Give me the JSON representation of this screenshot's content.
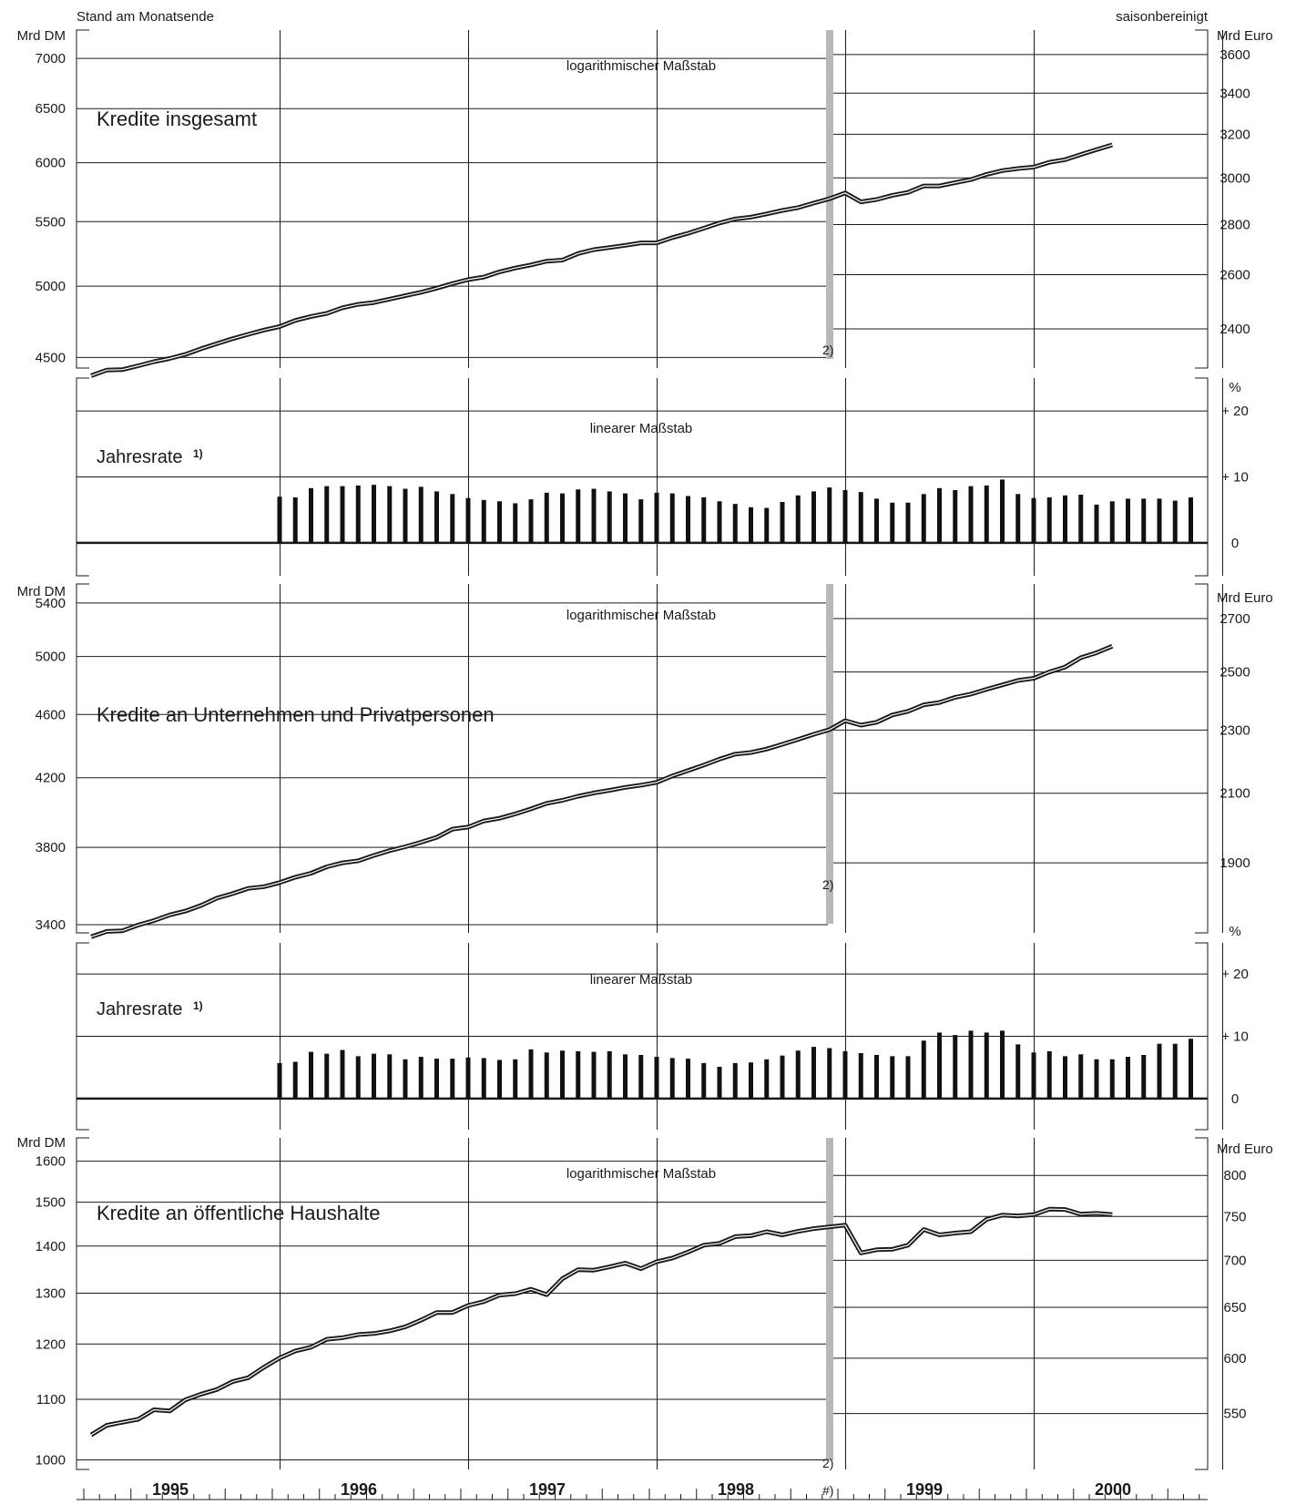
{
  "header": {
    "left_note": "Stand am Monatsende",
    "right_note": "saisonbereinigt"
  },
  "units": {
    "dm": "Mrd DM",
    "euro": "Mrd Euro",
    "percent": "%"
  },
  "scale_labels": {
    "log": "logarithmischer Maßstab",
    "linear": "linearer Maßstab"
  },
  "footnote_marks": {
    "break": "2)",
    "axis": "#)",
    "rate": "1)"
  },
  "colors": {
    "line": "#1a1a1a",
    "bar": "#111111",
    "grid": "#1a1a1a",
    "break_bar": "#b8b8b8"
  },
  "chart_data": [
    {
      "type": "line",
      "title": "Kredite insgesamt",
      "y_scale": "log",
      "ylabel_left": "Mrd DM",
      "ylabel_right": "Mrd Euro",
      "left_ticks": [
        4500,
        5000,
        5500,
        6000,
        6500,
        7000
      ],
      "right_ticks": [
        2400,
        2600,
        2800,
        3000,
        3200,
        3400,
        3600
      ],
      "ylim": [
        4430,
        7300
      ],
      "x_start": "1994-12",
      "x_end": "2000-06",
      "series": [
        {
          "values": [
            4380,
            4417,
            4420,
            4445,
            4472,
            4493,
            4520,
            4558,
            4592,
            4626,
            4656,
            4686,
            4710,
            4753,
            4781,
            4803,
            4843,
            4867,
            4880,
            4905,
            4930,
            4955,
            4985,
            5019,
            5049,
            5068,
            5107,
            5136,
            5159,
            5188,
            5196,
            5247,
            5277,
            5294,
            5311,
            5330,
            5330,
            5372,
            5406,
            5447,
            5489,
            5522,
            5537,
            5563,
            5592,
            5615,
            5653,
            5690,
            5738,
            5663,
            5683,
            5718,
            5743,
            5798,
            5798,
            5826,
            5853,
            5898,
            5931,
            5949,
            5962,
            6005,
            6027,
            6074,
            6118,
            6161
          ]
        }
      ]
    },
    {
      "type": "bar",
      "title": "Jahresrate",
      "ylabel_right": "%",
      "right_ticks": [
        "+ 20",
        "+ 10",
        "0"
      ],
      "ylim": [
        -5,
        25
      ],
      "x_start": "1995-12",
      "values": [
        7.0,
        6.9,
        8.3,
        8.6,
        8.6,
        8.7,
        8.8,
        8.6,
        8.2,
        8.5,
        7.8,
        7.4,
        6.8,
        6.5,
        6.3,
        6.0,
        6.6,
        7.6,
        7.5,
        8.1,
        8.2,
        7.8,
        7.5,
        6.6,
        7.6,
        7.5,
        7.1,
        6.9,
        6.3,
        5.9,
        5.4,
        5.3,
        6.2,
        7.2,
        7.8,
        8.4,
        8.0,
        7.7,
        6.7,
        6.1,
        6.1,
        7.4,
        8.3,
        8.0,
        8.6,
        8.7,
        9.6,
        7.4,
        6.8,
        6.9,
        7.2,
        7.3,
        5.8,
        6.3,
        6.7,
        6.7,
        6.7,
        6.4,
        6.9
      ]
    },
    {
      "type": "line",
      "title": "Kredite an Unternehmen und Privatpersonen",
      "y_scale": "log",
      "ylabel_left": "Mrd DM",
      "ylabel_right": "Mrd Euro",
      "left_ticks": [
        3400,
        3800,
        4200,
        4600,
        5000,
        5400
      ],
      "right_ticks": [
        1900,
        2100,
        2300,
        2500,
        2700
      ],
      "ylim": [
        3360,
        5550
      ],
      "x_start": "1994-12",
      "x_end": "2000-06",
      "series": [
        {
          "values": [
            3341,
            3367,
            3370,
            3398,
            3420,
            3448,
            3467,
            3495,
            3532,
            3555,
            3582,
            3591,
            3612,
            3640,
            3661,
            3695,
            3716,
            3727,
            3756,
            3782,
            3803,
            3828,
            3855,
            3901,
            3912,
            3947,
            3962,
            3987,
            4016,
            4048,
            4066,
            4090,
            4109,
            4125,
            4142,
            4155,
            4172,
            4211,
            4244,
            4277,
            4314,
            4345,
            4355,
            4377,
            4407,
            4438,
            4471,
            4501,
            4559,
            4530,
            4549,
            4597,
            4621,
            4664,
            4680,
            4715,
            4737,
            4770,
            4800,
            4831,
            4846,
            4890,
            4925,
            4992,
            5027,
            5075
          ]
        }
      ]
    },
    {
      "type": "bar",
      "title": "Jahresrate",
      "ylabel_right": "%",
      "right_ticks": [
        "+ 20",
        "+ 10",
        "0"
      ],
      "ylim": [
        -5,
        25
      ],
      "x_start": "1995-12",
      "values": [
        5.7,
        5.9,
        7.5,
        7.2,
        7.8,
        6.8,
        7.2,
        7.1,
        6.3,
        6.7,
        6.4,
        6.4,
        6.6,
        6.5,
        6.2,
        6.3,
        7.9,
        7.4,
        7.7,
        7.6,
        7.5,
        7.6,
        7.1,
        7.0,
        6.7,
        6.5,
        6.4,
        5.7,
        5.1,
        5.7,
        5.8,
        6.3,
        6.9,
        7.7,
        8.3,
        8.1,
        7.6,
        7.3,
        7.0,
        6.8,
        6.8,
        9.3,
        10.6,
        10.2,
        10.9,
        10.6,
        10.9,
        8.7,
        7.4,
        7.6,
        6.8,
        7.1,
        6.3,
        6.3,
        6.7,
        7.0,
        8.8,
        8.8,
        9.6
      ]
    },
    {
      "type": "line",
      "title": "Kredite an öffentliche Haushalte",
      "y_scale": "log",
      "ylabel_left": "Mrd DM",
      "ylabel_right": "Mrd Euro",
      "left_ticks": [
        1000,
        1100,
        1200,
        1300,
        1400,
        1500,
        1600
      ],
      "right_ticks": [
        550,
        600,
        650,
        700,
        750,
        800
      ],
      "ylim": [
        985,
        1660
      ],
      "x_start": "1994-12",
      "x_end": "2000-06",
      "series": [
        {
          "values": [
            1040,
            1056,
            1061,
            1066,
            1082,
            1080,
            1099,
            1109,
            1117,
            1131,
            1138,
            1157,
            1174,
            1187,
            1194,
            1209,
            1212,
            1218,
            1220,
            1225,
            1233,
            1246,
            1261,
            1261,
            1275,
            1283,
            1296,
            1299,
            1308,
            1297,
            1330,
            1349,
            1348,
            1355,
            1363,
            1351,
            1366,
            1374,
            1387,
            1402,
            1406,
            1421,
            1423,
            1432,
            1425,
            1433,
            1439,
            1443,
            1447,
            1385,
            1392,
            1393,
            1402,
            1437,
            1425,
            1429,
            1432,
            1460,
            1470,
            1468,
            1471,
            1484,
            1483,
            1472,
            1474,
            1471
          ]
        }
      ]
    }
  ],
  "x_axis": {
    "years": [
      "1995",
      "1996",
      "1997",
      "1998",
      "1999",
      "2000"
    ]
  }
}
